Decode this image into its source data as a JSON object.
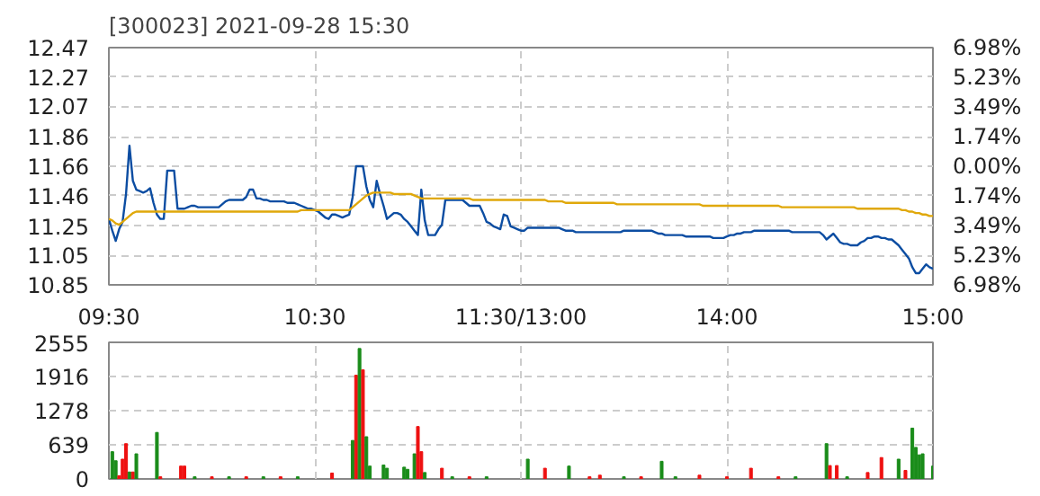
{
  "chart_data": [
    {
      "type": "line",
      "title": "[300023]  2021-09-28 15:30",
      "categories": [
        "09:30",
        null,
        null,
        null,
        null,
        null,
        null,
        null,
        null,
        null,
        null,
        null,
        null,
        null,
        null,
        null,
        null,
        null,
        null,
        null,
        null,
        null,
        null,
        null,
        null,
        null,
        null,
        null,
        null,
        null,
        null,
        null,
        null,
        null,
        null,
        null,
        null,
        null,
        null,
        null,
        null,
        null,
        null,
        null,
        null,
        null,
        null,
        null,
        null,
        null,
        null,
        null,
        null,
        null,
        null,
        null,
        null,
        null,
        null,
        null,
        "10:30",
        null,
        null,
        null,
        null,
        null,
        null,
        null,
        null,
        null,
        null,
        null,
        null,
        null,
        null,
        null,
        null,
        null,
        null,
        null,
        null,
        null,
        null,
        null,
        null,
        null,
        null,
        null,
        null,
        null,
        null,
        null,
        null,
        null,
        null,
        null,
        null,
        null,
        null,
        null,
        null,
        null,
        null,
        null,
        null,
        null,
        null,
        null,
        null,
        null,
        null,
        null,
        null,
        null,
        null,
        null,
        null,
        null,
        null,
        null,
        "11:30/13:00",
        null,
        null,
        null,
        null,
        null,
        null,
        null,
        null,
        null,
        null,
        null,
        null,
        null,
        null,
        null,
        null,
        null,
        null,
        null,
        null,
        null,
        null,
        null,
        null,
        null,
        null,
        null,
        null,
        null,
        null,
        null,
        null,
        null,
        null,
        null,
        null,
        null,
        null,
        null,
        null,
        null,
        null,
        null,
        null,
        null,
        null,
        null,
        null,
        null,
        null,
        null,
        null,
        null,
        null,
        null,
        null,
        null,
        null,
        null,
        "14:00",
        null,
        null,
        null,
        null,
        null,
        null,
        null,
        null,
        null,
        null,
        null,
        null,
        null,
        null,
        null,
        null,
        null,
        null,
        null,
        null,
        null,
        null,
        null,
        null,
        null,
        null,
        null,
        null,
        null,
        null,
        null,
        null,
        null,
        null,
        null,
        null,
        null,
        null,
        null,
        null,
        null,
        null,
        null,
        null,
        null,
        null,
        null,
        null,
        null,
        null,
        null,
        null,
        null,
        null,
        null,
        null,
        null,
        null,
        null,
        "15:00"
      ],
      "ylim": [
        10.85,
        12.47
      ],
      "yticks": [
        10.85,
        11.05,
        11.25,
        11.46,
        11.66,
        11.86,
        12.07,
        12.27,
        12.47
      ],
      "y2lim": [
        -6.98,
        6.98
      ],
      "y2ticks": [
        {
          "value": -6.98,
          "label": "6.98%"
        },
        {
          "value": -5.23,
          "label": "5.23%"
        },
        {
          "value": -3.49,
          "label": "3.49%"
        },
        {
          "value": -1.74,
          "label": "1.74%"
        },
        {
          "value": 0,
          "label": "0.00%"
        },
        {
          "value": 1.74,
          "label": "1.74%"
        },
        {
          "value": 3.49,
          "label": "3.49%"
        },
        {
          "value": 5.23,
          "label": "5.23%"
        },
        {
          "value": 6.98,
          "label": "6.98%"
        }
      ],
      "grid": true,
      "series": [
        {
          "color": "#0c4da2",
          "values": [
            11.3,
            11.22,
            11.15,
            11.23,
            11.28,
            11.47,
            11.8,
            11.56,
            11.5,
            11.49,
            11.48,
            11.49,
            11.51,
            11.41,
            11.33,
            11.3,
            11.3,
            11.63,
            11.63,
            11.63,
            11.37,
            11.37,
            11.37,
            11.38,
            11.39,
            11.39,
            11.38,
            11.38,
            11.38,
            11.38,
            11.38,
            11.38,
            11.38,
            11.4,
            11.42,
            11.43,
            11.43,
            11.43,
            11.43,
            11.43,
            11.45,
            11.5,
            11.5,
            11.44,
            11.44,
            11.43,
            11.43,
            11.42,
            11.42,
            11.42,
            11.42,
            11.42,
            11.41,
            11.41,
            11.41,
            11.4,
            11.39,
            11.38,
            11.37,
            11.37,
            11.36,
            11.35,
            11.33,
            11.31,
            11.3,
            11.33,
            11.33,
            11.32,
            11.31,
            11.32,
            11.33,
            11.45,
            11.66,
            11.66,
            11.66,
            11.52,
            11.43,
            11.38,
            11.56,
            11.47,
            11.39,
            11.3,
            11.32,
            11.34,
            11.34,
            11.33,
            11.3,
            11.28,
            11.25,
            11.22,
            11.19,
            11.5,
            11.29,
            11.19,
            11.19,
            11.19,
            11.23,
            11.26,
            11.43,
            11.43,
            11.43,
            11.43,
            11.43,
            11.43,
            11.41,
            11.39,
            11.39,
            11.39,
            11.39,
            11.34,
            11.28,
            11.27,
            11.25,
            11.24,
            11.23,
            11.33,
            11.32,
            11.25,
            11.24,
            11.23,
            11.22,
            11.22,
            11.24,
            11.24,
            11.24,
            11.24,
            11.24,
            11.24,
            11.24,
            11.24,
            11.24,
            11.24,
            11.23,
            11.22,
            11.22,
            11.22,
            11.21,
            11.21,
            11.21,
            11.21,
            11.21,
            11.21,
            11.21,
            11.21,
            11.21,
            11.21,
            11.21,
            11.21,
            11.21,
            11.21,
            11.22,
            11.22,
            11.22,
            11.22,
            11.22,
            11.22,
            11.22,
            11.22,
            11.22,
            11.21,
            11.2,
            11.2,
            11.19,
            11.19,
            11.19,
            11.19,
            11.19,
            11.19,
            11.18,
            11.18,
            11.18,
            11.18,
            11.18,
            11.18,
            11.18,
            11.18,
            11.17,
            11.17,
            11.17,
            11.17,
            11.18,
            11.19,
            11.19,
            11.2,
            11.2,
            11.21,
            11.21,
            11.21,
            11.22,
            11.22,
            11.22,
            11.22,
            11.22,
            11.22,
            11.22,
            11.22,
            11.22,
            11.22,
            11.22,
            11.21,
            11.21,
            11.21,
            11.21,
            11.21,
            11.21,
            11.21,
            11.21,
            11.21,
            11.19,
            11.16,
            11.18,
            11.2,
            11.17,
            11.14,
            11.13,
            11.13,
            11.12,
            11.12,
            11.12,
            11.14,
            11.15,
            11.17,
            11.17,
            11.18,
            11.18,
            11.17,
            11.17,
            11.16,
            11.16,
            11.14,
            11.12,
            11.09,
            11.06,
            11.03,
            10.97,
            10.93,
            10.93,
            10.96,
            10.99,
            10.97,
            10.96
          ]
        },
        {
          "color": "#e0a80a",
          "values": [
            11.3,
            11.29,
            11.27,
            11.26,
            11.28,
            11.3,
            11.32,
            11.34,
            11.35,
            11.35,
            11.35,
            11.35,
            11.35,
            11.35,
            11.35,
            11.35,
            11.35,
            11.35,
            11.35,
            11.35,
            11.35,
            11.35,
            11.35,
            11.35,
            11.35,
            11.35,
            11.35,
            11.35,
            11.35,
            11.35,
            11.35,
            11.35,
            11.35,
            11.35,
            11.35,
            11.35,
            11.35,
            11.35,
            11.35,
            11.35,
            11.35,
            11.35,
            11.35,
            11.35,
            11.35,
            11.35,
            11.35,
            11.35,
            11.35,
            11.35,
            11.35,
            11.35,
            11.35,
            11.35,
            11.35,
            11.35,
            11.36,
            11.36,
            11.36,
            11.36,
            11.36,
            11.36,
            11.36,
            11.36,
            11.36,
            11.36,
            11.36,
            11.36,
            11.36,
            11.36,
            11.36,
            11.38,
            11.4,
            11.42,
            11.44,
            11.46,
            11.47,
            11.48,
            11.48,
            11.48,
            11.48,
            11.48,
            11.48,
            11.47,
            11.47,
            11.47,
            11.47,
            11.47,
            11.47,
            11.46,
            11.45,
            11.44,
            11.44,
            11.44,
            11.44,
            11.44,
            11.44,
            11.44,
            11.44,
            11.44,
            11.44,
            11.44,
            11.44,
            11.44,
            11.44,
            11.44,
            11.43,
            11.43,
            11.43,
            11.43,
            11.43,
            11.43,
            11.43,
            11.43,
            11.43,
            11.43,
            11.43,
            11.43,
            11.43,
            11.43,
            11.43,
            11.43,
            11.43,
            11.43,
            11.43,
            11.43,
            11.43,
            11.43,
            11.42,
            11.42,
            11.42,
            11.42,
            11.42,
            11.41,
            11.41,
            11.41,
            11.41,
            11.41,
            11.41,
            11.41,
            11.41,
            11.41,
            11.41,
            11.41,
            11.41,
            11.41,
            11.41,
            11.41,
            11.4,
            11.4,
            11.4,
            11.4,
            11.4,
            11.4,
            11.4,
            11.4,
            11.4,
            11.4,
            11.4,
            11.4,
            11.4,
            11.4,
            11.4,
            11.4,
            11.4,
            11.4,
            11.4,
            11.4,
            11.4,
            11.4,
            11.4,
            11.4,
            11.4,
            11.39,
            11.39,
            11.39,
            11.39,
            11.39,
            11.39,
            11.39,
            11.39,
            11.39,
            11.39,
            11.39,
            11.39,
            11.39,
            11.39,
            11.39,
            11.39,
            11.39,
            11.39,
            11.39,
            11.39,
            11.39,
            11.39,
            11.39,
            11.38,
            11.38,
            11.38,
            11.38,
            11.38,
            11.38,
            11.38,
            11.38,
            11.38,
            11.38,
            11.38,
            11.38,
            11.38,
            11.38,
            11.38,
            11.38,
            11.38,
            11.38,
            11.38,
            11.38,
            11.38,
            11.38,
            11.37,
            11.37,
            11.37,
            11.37,
            11.37,
            11.37,
            11.37,
            11.37,
            11.37,
            11.37,
            11.37,
            11.37,
            11.37,
            11.36,
            11.36,
            11.35,
            11.35,
            11.34,
            11.34,
            11.33,
            11.33,
            11.32,
            11.32
          ]
        }
      ]
    },
    {
      "type": "bar",
      "tick_labels": "y",
      "grid": true,
      "categories": [
        null,
        null,
        null,
        null,
        null,
        null,
        null,
        null,
        null,
        null,
        null,
        null,
        null,
        null,
        null,
        null,
        null,
        null,
        null,
        null,
        null,
        null,
        null,
        null,
        null,
        null,
        null,
        null,
        null,
        null,
        null,
        null,
        null,
        null,
        null,
        null,
        null,
        null,
        null,
        null,
        null,
        null,
        null,
        null,
        null,
        null,
        null,
        null,
        null,
        null,
        null,
        null,
        null,
        null,
        null,
        null,
        null,
        null,
        null,
        null,
        null,
        null,
        null,
        null,
        null,
        null,
        null,
        null,
        null,
        null,
        null,
        null,
        null,
        null,
        null,
        null,
        null,
        null,
        null,
        null,
        null,
        null,
        null,
        null,
        null,
        null,
        null,
        null,
        null,
        null,
        null,
        null,
        null,
        null,
        null,
        null,
        null,
        null,
        null,
        null,
        null,
        null,
        null,
        null,
        null,
        null,
        null,
        null,
        null,
        null,
        null,
        null,
        null,
        null,
        null,
        null,
        null,
        null,
        null,
        null,
        null,
        null,
        null,
        null,
        null,
        null,
        null,
        null,
        null,
        null,
        null,
        null,
        null,
        null,
        null,
        null,
        null,
        null,
        null,
        null,
        null,
        null,
        null,
        null,
        null,
        null,
        null,
        null,
        null,
        null,
        null,
        null,
        null,
        null,
        null,
        null,
        null,
        null,
        null,
        null,
        null,
        null,
        null,
        null,
        null,
        null,
        null,
        null,
        null,
        null,
        null,
        null,
        null,
        null,
        null,
        null,
        null,
        null,
        null,
        null,
        null,
        null,
        null,
        null,
        null,
        null,
        null,
        null,
        null,
        null,
        null,
        null,
        null,
        null,
        null,
        null,
        null,
        null,
        null,
        null,
        null,
        null,
        null,
        null,
        null,
        null,
        null,
        null,
        null,
        null,
        null,
        null,
        null,
        null,
        null,
        null,
        null,
        null,
        null,
        null,
        null,
        null,
        null,
        null,
        null,
        null,
        null,
        null,
        null,
        null,
        null,
        null,
        null,
        null,
        null,
        null,
        null,
        null,
        null,
        null,
        null
      ],
      "ylim": [
        0,
        2555
      ],
      "yticks": [
        0,
        639,
        1278,
        1916,
        2555
      ],
      "values": [
        null,
        510,
        340,
        60,
        370,
        660,
        130,
        130,
        470,
        null,
        null,
        null,
        null,
        null,
        870,
        40,
        null,
        null,
        null,
        null,
        null,
        240,
        240,
        null,
        null,
        40,
        null,
        null,
        null,
        null,
        40,
        null,
        null,
        null,
        null,
        40,
        null,
        null,
        null,
        null,
        40,
        null,
        null,
        null,
        null,
        40,
        null,
        null,
        null,
        null,
        40,
        null,
        null,
        null,
        null,
        40,
        null,
        null,
        null,
        null,
        null,
        null,
        null,
        null,
        null,
        110,
        null,
        null,
        null,
        null,
        null,
        720,
        1940,
        2440,
        2040,
        790,
        240,
        null,
        null,
        null,
        260,
        200,
        null,
        null,
        null,
        null,
        220,
        180,
        null,
        470,
        980,
        510,
        120,
        null,
        null,
        null,
        null,
        200,
        null,
        null,
        40,
        null,
        null,
        null,
        null,
        40,
        null,
        null,
        null,
        null,
        40,
        null,
        null,
        null,
        null,
        null,
        null,
        null,
        null,
        null,
        null,
        null,
        370,
        null,
        null,
        null,
        null,
        200,
        null,
        null,
        null,
        null,
        null,
        null,
        240,
        null,
        null,
        null,
        null,
        null,
        40,
        null,
        null,
        70,
        null,
        null,
        null,
        null,
        null,
        null,
        40,
        null,
        null,
        null,
        null,
        40,
        null,
        null,
        null,
        null,
        null,
        330,
        null,
        null,
        null,
        40,
        null,
        null,
        null,
        null,
        null,
        null,
        70,
        null,
        null,
        null,
        null,
        null,
        null,
        null,
        40,
        null,
        null,
        null,
        null,
        null,
        null,
        200,
        null,
        null,
        null,
        null,
        null,
        null,
        null,
        40,
        null,
        null,
        null,
        null,
        40,
        null,
        null,
        null,
        null,
        null,
        null,
        null,
        null,
        660,
        250,
        null,
        250,
        null,
        null,
        40,
        null,
        null,
        null,
        null,
        null,
        120,
        null,
        null,
        null,
        400,
        null,
        null,
        null,
        null,
        370,
        null,
        160,
        null,
        950,
        590,
        450,
        470,
        null,
        null,
        240
      ],
      "colors": [
        null,
        "#1a8c1a",
        "#1a8c1a",
        "#ee1111",
        "#ee1111",
        "#ee1111",
        "#1a8c1a",
        "#ee1111",
        "#1a8c1a",
        null,
        null,
        null,
        null,
        null,
        "#1a8c1a",
        "#ee1111",
        null,
        null,
        null,
        null,
        null,
        "#ee1111",
        "#ee1111",
        null,
        null,
        "#1a8c1a",
        null,
        null,
        null,
        null,
        "#ee1111",
        null,
        null,
        null,
        null,
        "#1a8c1a",
        null,
        null,
        null,
        null,
        "#ee1111",
        null,
        null,
        null,
        null,
        "#1a8c1a",
        null,
        null,
        null,
        null,
        "#ee1111",
        null,
        null,
        null,
        null,
        "#1a8c1a",
        null,
        null,
        null,
        null,
        null,
        null,
        null,
        null,
        null,
        "#ee1111",
        null,
        null,
        null,
        null,
        null,
        "#1a8c1a",
        "#ee1111",
        "#1a8c1a",
        "#ee1111",
        "#1a8c1a",
        "#1a8c1a",
        null,
        null,
        null,
        "#1a8c1a",
        "#1a8c1a",
        null,
        null,
        null,
        null,
        "#1a8c1a",
        "#1a8c1a",
        null,
        "#1a8c1a",
        "#ee1111",
        "#ee1111",
        "#1a8c1a",
        null,
        null,
        null,
        null,
        "#ee1111",
        null,
        null,
        "#1a8c1a",
        null,
        null,
        null,
        null,
        "#ee1111",
        null,
        null,
        null,
        null,
        "#1a8c1a",
        null,
        null,
        null,
        null,
        null,
        null,
        null,
        null,
        null,
        null,
        null,
        "#1a8c1a",
        null,
        null,
        null,
        null,
        "#ee1111",
        null,
        null,
        null,
        null,
        null,
        null,
        "#1a8c1a",
        null,
        null,
        null,
        null,
        null,
        "#ee1111",
        null,
        null,
        "#ee1111",
        null,
        null,
        null,
        null,
        null,
        null,
        "#1a8c1a",
        null,
        null,
        null,
        null,
        "#ee1111",
        null,
        null,
        null,
        null,
        null,
        "#1a8c1a",
        null,
        null,
        null,
        "#1a8c1a",
        null,
        null,
        null,
        null,
        null,
        null,
        "#ee1111",
        null,
        null,
        null,
        null,
        null,
        null,
        null,
        "#ee1111",
        null,
        null,
        null,
        null,
        null,
        null,
        "#ee1111",
        null,
        null,
        null,
        null,
        null,
        null,
        null,
        "#ee1111",
        null,
        null,
        null,
        null,
        "#1a8c1a",
        null,
        null,
        null,
        null,
        null,
        null,
        null,
        null,
        "#1a8c1a",
        "#ee1111",
        null,
        "#ee1111",
        null,
        null,
        "#1a8c1a",
        null,
        null,
        null,
        null,
        null,
        "#ee1111",
        null,
        null,
        null,
        "#ee1111",
        null,
        null,
        null,
        null,
        "#1a8c1a",
        null,
        "#ee1111",
        null,
        "#1a8c1a",
        "#1a8c1a",
        "#1a8c1a",
        "#1a8c1a",
        null,
        null,
        "#1a8c1a"
      ]
    }
  ]
}
